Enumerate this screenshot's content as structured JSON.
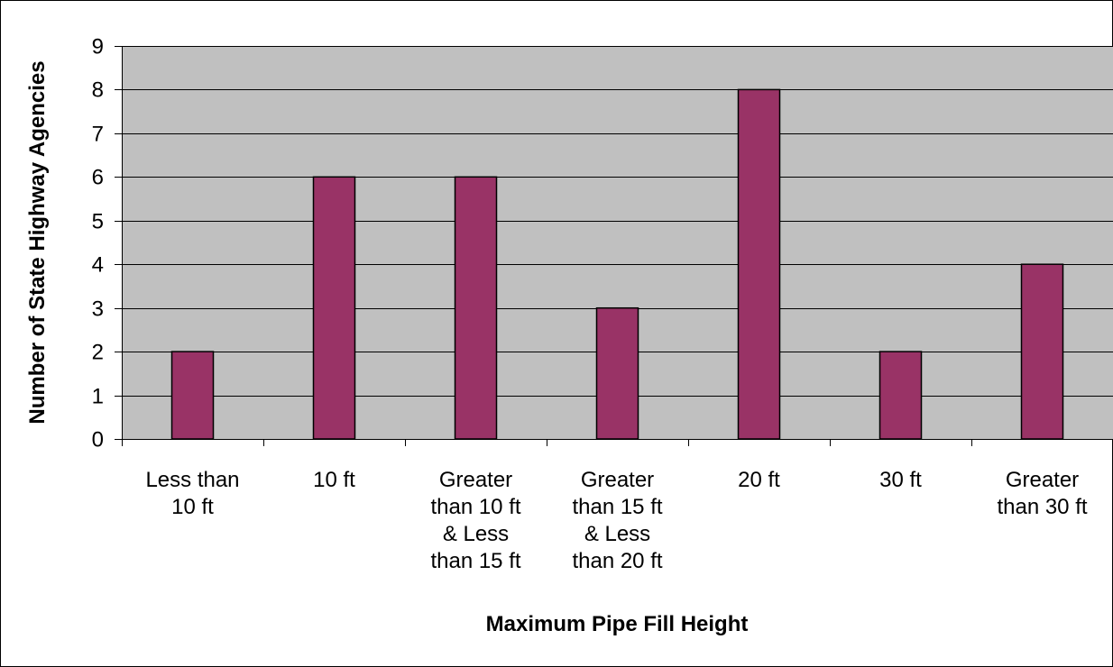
{
  "colors": {
    "plot_background": "#c0c0c0",
    "bar_fill": "#993366",
    "bar_stroke": "#000000",
    "gridline": "#000000",
    "page_background": "#ffffff"
  },
  "chart_data": {
    "type": "bar",
    "title": "",
    "xlabel": "Maximum Pipe Fill Height",
    "ylabel": "Number of State Highway Agencies",
    "categories": [
      [
        "Less than",
        "10 ft"
      ],
      [
        "10 ft"
      ],
      [
        "Greater",
        "than 10 ft",
        "& Less",
        "than 15 ft"
      ],
      [
        "Greater",
        "than 15 ft",
        "& Less",
        "than 20 ft"
      ],
      [
        "20 ft"
      ],
      [
        "30 ft"
      ],
      [
        "Greater",
        "than 30 ft"
      ]
    ],
    "values": [
      2,
      6,
      6,
      3,
      8,
      2,
      4
    ],
    "ylim": [
      0,
      9
    ],
    "yticks": [
      0,
      1,
      2,
      3,
      4,
      5,
      6,
      7,
      8,
      9
    ],
    "grid": true,
    "legend": "none"
  }
}
